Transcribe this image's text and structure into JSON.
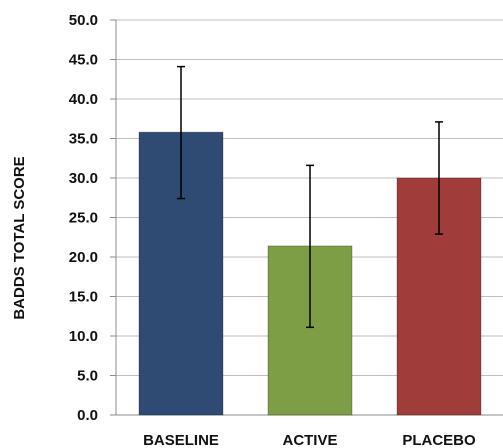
{
  "chart_data": {
    "type": "bar",
    "title": "",
    "xlabel": "",
    "ylabel": "BADDS TOTAL SCORE",
    "ylim": [
      0,
      50
    ],
    "yticks": [
      "0.0",
      "5.0",
      "10.0",
      "15.0",
      "20.0",
      "25.0",
      "30.0",
      "35.0",
      "40.0",
      "45.0",
      "50.0"
    ],
    "grid": true,
    "legend": "none",
    "categories": [
      "BASELINE",
      "ACTIVE",
      "PLACEBO"
    ],
    "values": [
      35.8,
      21.4,
      30.0
    ],
    "error_low": [
      27.4,
      11.1,
      22.9
    ],
    "error_high": [
      44.1,
      31.6,
      37.1
    ],
    "colors": [
      "#2F4B73",
      "#7E9E45",
      "#A03C3A"
    ]
  }
}
